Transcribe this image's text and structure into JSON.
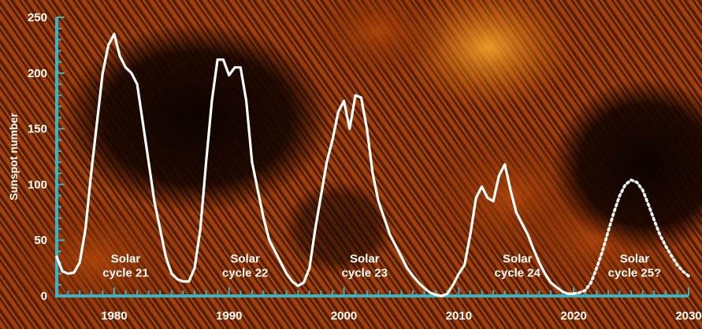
{
  "chart_data": {
    "type": "line",
    "title": "",
    "xlabel": "",
    "ylabel": "Sunspot number",
    "xlim": [
      1975,
      2030
    ],
    "ylim": [
      0,
      250
    ],
    "x_ticks": [
      1980,
      1990,
      2000,
      2010,
      2020,
      2030
    ],
    "y_ticks": [
      0,
      50,
      100,
      150,
      200,
      250
    ],
    "grid": false,
    "colors": {
      "axis": "#3bb3c3",
      "line": "#ffffff",
      "background_dark": "#140500",
      "background_mid": "#7a2806",
      "background_light": "#e08a18"
    },
    "series": [
      {
        "name": "Observed sunspot number",
        "style": "solid",
        "x": [
          1975.0,
          1975.5,
          1976.0,
          1976.5,
          1977.0,
          1977.5,
          1978.0,
          1978.5,
          1979.0,
          1979.5,
          1980.0,
          1980.5,
          1981.0,
          1981.5,
          1982.0,
          1982.5,
          1983.0,
          1983.5,
          1984.0,
          1984.5,
          1985.0,
          1985.5,
          1986.0,
          1986.5,
          1987.0,
          1987.5,
          1988.0,
          1988.5,
          1989.0,
          1989.5,
          1990.0,
          1990.5,
          1991.0,
          1991.5,
          1992.0,
          1992.5,
          1993.0,
          1993.5,
          1994.0,
          1994.5,
          1995.0,
          1995.5,
          1996.0,
          1996.5,
          1997.0,
          1997.5,
          1998.0,
          1998.5,
          1999.0,
          1999.5,
          2000.0,
          2000.5,
          2001.0,
          2001.5,
          2002.0,
          2002.5,
          2003.0,
          2003.5,
          2004.0,
          2004.5,
          2005.0,
          2005.5,
          2006.0,
          2006.5,
          2007.0,
          2007.5,
          2008.0,
          2008.5,
          2009.0,
          2009.5,
          2010.0,
          2010.5,
          2011.0,
          2011.5,
          2012.0,
          2012.5,
          2013.0,
          2013.5,
          2014.0,
          2014.5,
          2015.0,
          2015.5,
          2016.0,
          2016.5,
          2017.0,
          2017.5,
          2018.0,
          2018.5,
          2019.0,
          2019.5,
          2020.0
        ],
        "y": [
          35,
          22,
          20,
          21,
          30,
          60,
          110,
          155,
          200,
          225,
          235,
          215,
          205,
          200,
          190,
          155,
          120,
          85,
          60,
          35,
          20,
          15,
          13,
          13,
          25,
          60,
          120,
          175,
          212,
          212,
          198,
          205,
          205,
          175,
          120,
          95,
          70,
          50,
          40,
          30,
          20,
          13,
          9,
          12,
          25,
          60,
          90,
          120,
          140,
          165,
          175,
          150,
          180,
          178,
          150,
          110,
          85,
          70,
          55,
          45,
          35,
          25,
          18,
          12,
          7,
          3,
          1,
          0,
          2,
          10,
          20,
          28,
          55,
          88,
          98,
          88,
          85,
          108,
          118,
          95,
          75,
          65,
          55,
          42,
          30,
          20,
          12,
          8,
          4,
          2,
          2
        ]
      },
      {
        "name": "Predicted (Solar cycle 25)",
        "style": "dotted",
        "x": [
          2020.0,
          2020.5,
          2021.0,
          2021.5,
          2022.0,
          2022.5,
          2023.0,
          2023.5,
          2024.0,
          2024.5,
          2025.0,
          2025.5,
          2026.0,
          2026.5,
          2027.0,
          2027.5,
          2028.0,
          2028.5,
          2029.0,
          2029.5,
          2030.0
        ],
        "y": [
          2,
          3,
          5,
          12,
          25,
          40,
          58,
          75,
          90,
          100,
          104,
          102,
          95,
          82,
          68,
          55,
          45,
          36,
          28,
          22,
          18
        ]
      }
    ],
    "annotations": [
      {
        "text_line1": "Solar",
        "text_line2": "cycle 21",
        "x": 1981,
        "y": 30
      },
      {
        "text_line1": "Solar",
        "text_line2": "cycle 22",
        "x": 1991.4,
        "y": 30
      },
      {
        "text_line1": "Solar",
        "text_line2": "cycle 23",
        "x": 2001.8,
        "y": 30
      },
      {
        "text_line1": "Solar",
        "text_line2": "cycle 24",
        "x": 2015.1,
        "y": 30
      },
      {
        "text_line1": "Solar",
        "text_line2": "cycle 25?",
        "x": 2025.3,
        "y": 30
      }
    ]
  }
}
